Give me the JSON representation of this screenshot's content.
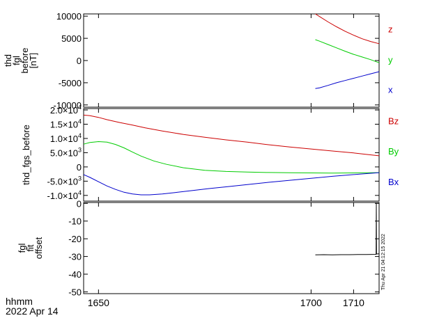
{
  "footer": {
    "time_label": "hhmm",
    "date_label": "2022 Apr 14",
    "stamp": "Thu Apr 21 04:12:15 2022"
  },
  "chart_data": [
    {
      "type": "line",
      "ylabel": [
        "thd",
        "fgl",
        "before",
        "[nT]"
      ],
      "ylim": [
        -10500,
        10500
      ],
      "yticks": [
        {
          "value": 10000,
          "label": "10000"
        },
        {
          "value": 5000,
          "label": "5000"
        },
        {
          "value": 0,
          "label": "0"
        },
        {
          "value": -5000,
          "label": "-5000"
        },
        {
          "value": -10000,
          "label": "-10000"
        }
      ],
      "series": [
        {
          "name": "z",
          "color": "#cc0000",
          "x": [
            1701,
            1702,
            1704,
            1706,
            1708,
            1710,
            1712,
            1714,
            1716
          ],
          "y": [
            10500,
            9900,
            8700,
            7600,
            6600,
            5700,
            4900,
            4300,
            3800
          ]
        },
        {
          "name": "y",
          "color": "#00cc00",
          "x": [
            1701,
            1702,
            1704,
            1706,
            1708,
            1710,
            1712,
            1714,
            1716
          ],
          "y": [
            4700,
            4350,
            3600,
            2850,
            2100,
            1400,
            800,
            200,
            -500
          ]
        },
        {
          "name": "x",
          "color": "#0000cc",
          "x": [
            1701,
            1702,
            1704,
            1706,
            1708,
            1710,
            1712,
            1714,
            1716
          ],
          "y": [
            -6300,
            -6150,
            -5600,
            -5000,
            -4500,
            -4000,
            -3500,
            -3000,
            -2500
          ]
        }
      ]
    },
    {
      "type": "line",
      "ylabel": [
        "thd_fgs_before"
      ],
      "ylim": [
        -12000,
        20500
      ],
      "yticks": [
        {
          "value": 20000,
          "mant": "2.0×10",
          "exp": "4"
        },
        {
          "value": 15000,
          "mant": "1.5×10",
          "exp": "4"
        },
        {
          "value": 10000,
          "mant": "1.0×10",
          "exp": "4"
        },
        {
          "value": 5000,
          "mant": "5.0×10",
          "exp": "3"
        },
        {
          "value": 0,
          "mant": "0",
          "exp": ""
        },
        {
          "value": -5000,
          "mant": "-5.0×10",
          "exp": "3"
        },
        {
          "value": -10000,
          "mant": "-1.0×10",
          "exp": "4"
        }
      ],
      "series": [
        {
          "name": "Bz",
          "color": "#cc0000",
          "x": [
            1646.5,
            1648,
            1650,
            1652,
            1655,
            1658,
            1661,
            1665,
            1670,
            1675,
            1680,
            1685,
            1690,
            1695,
            1700,
            1705,
            1710,
            1713,
            1716
          ],
          "y": [
            18200,
            18000,
            17400,
            16600,
            15600,
            14700,
            13700,
            12600,
            11400,
            10400,
            9500,
            8700,
            7800,
            7000,
            6300,
            5600,
            4900,
            4400,
            3900
          ]
        },
        {
          "name": "By",
          "color": "#00cc00",
          "x": [
            1646.5,
            1648,
            1650,
            1652,
            1654,
            1656,
            1658,
            1660,
            1663,
            1666,
            1670,
            1675,
            1680,
            1685,
            1690,
            1695,
            1700,
            1705,
            1710,
            1716
          ],
          "y": [
            8000,
            8600,
            8900,
            8700,
            7900,
            6700,
            5200,
            3800,
            2100,
            900,
            -300,
            -1200,
            -1600,
            -1800,
            -1950,
            -2050,
            -2100,
            -2150,
            -2100,
            -2000
          ]
        },
        {
          "name": "Bx",
          "color": "#0000cc",
          "x": [
            1646.5,
            1648,
            1650,
            1652,
            1654,
            1656,
            1658,
            1660,
            1662,
            1665,
            1668,
            1672,
            1676,
            1680,
            1685,
            1690,
            1695,
            1700,
            1705,
            1710,
            1716
          ],
          "y": [
            -2700,
            -3700,
            -5200,
            -6700,
            -7900,
            -8900,
            -9500,
            -9800,
            -9800,
            -9500,
            -9000,
            -8300,
            -7600,
            -7000,
            -6200,
            -5400,
            -4700,
            -4000,
            -3300,
            -2700,
            -2000
          ]
        }
      ]
    },
    {
      "type": "line",
      "ylabel": [
        "fgl",
        "fit",
        "offset"
      ],
      "ylim": [
        -51,
        0.5
      ],
      "yticks": [
        {
          "value": 0,
          "label": "0"
        },
        {
          "value": -10,
          "label": "-10"
        },
        {
          "value": -20,
          "label": "-20"
        },
        {
          "value": -30,
          "label": "-30"
        },
        {
          "value": -40,
          "label": "-40"
        },
        {
          "value": -50,
          "label": "-50"
        }
      ],
      "series": [
        {
          "name": "",
          "color": "#000000",
          "x": [
            1701,
            1703,
            1705,
            1707,
            1709,
            1711,
            1713,
            1715.3,
            1715.35,
            1715.4,
            1716
          ],
          "y": [
            -29.1,
            -29,
            -29.1,
            -29,
            -29,
            -28.9,
            -28.9,
            -28.8,
            0,
            -28.6,
            -28.5
          ]
        }
      ]
    }
  ],
  "xaxis": {
    "xlim": [
      1646.5,
      1716
    ],
    "ticks": [
      {
        "value": 1650,
        "label": "1650"
      },
      {
        "value": 1700,
        "label": "1700"
      },
      {
        "value": 1710,
        "label": "1710"
      }
    ]
  }
}
